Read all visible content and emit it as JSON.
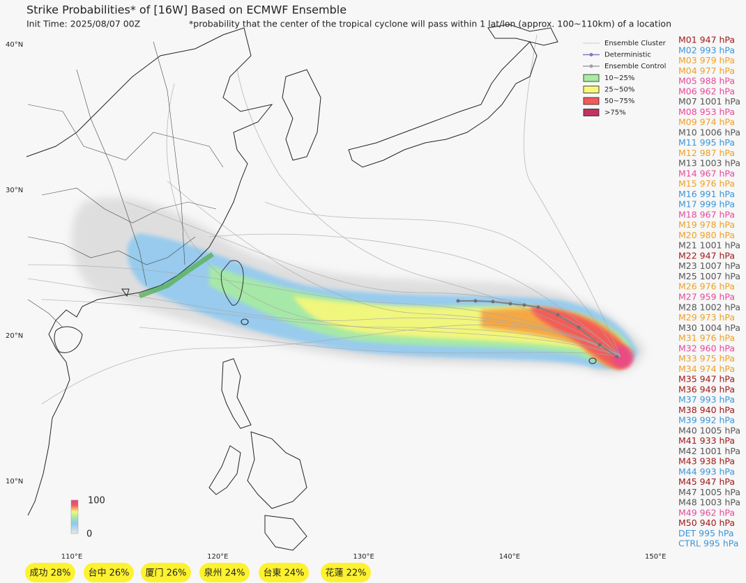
{
  "header": {
    "title": "Strike Probabilities* of [16W] Based on ECMWF Ensemble",
    "init_time": "Init Time: 2025/08/07 00Z",
    "footnote": "*probability that the center of the tropical cyclone will pass within 1 lat/lon (approx. 100~110km) of a location"
  },
  "map": {
    "lat_ticks": [
      {
        "value": 40,
        "label": "40°N"
      },
      {
        "value": 30,
        "label": "30°N"
      },
      {
        "value": 20,
        "label": "20°N"
      },
      {
        "value": 10,
        "label": "10°N"
      }
    ],
    "lon_ticks": [
      {
        "value": 110,
        "label": "110°E"
      },
      {
        "value": 120,
        "label": "120°E"
      },
      {
        "value": 130,
        "label": "130°E"
      },
      {
        "value": 140,
        "label": "140°E"
      },
      {
        "value": 150,
        "label": "150°E"
      }
    ]
  },
  "legend": {
    "lines": [
      {
        "label": "Ensemble Cluster",
        "color": "#c8c8c8"
      },
      {
        "label": "Deterministic",
        "color": "#7b7bc0"
      },
      {
        "label": "Ensemble Control",
        "color": "#a0a0a0"
      }
    ],
    "bands": [
      {
        "label": "10~25%",
        "color": "#a8eca0"
      },
      {
        "label": "25~50%",
        "color": "#f6f77a"
      },
      {
        "label": "50~75%",
        "color": "#f25a5a"
      },
      {
        "label": ">75%",
        "color": "#c2335e"
      }
    ]
  },
  "colorbar": {
    "max": "100",
    "min": "0"
  },
  "members": [
    {
      "label": "M01 947 hPa",
      "color": "#a01818"
    },
    {
      "label": "M02 993 hPa",
      "color": "#3a95d8"
    },
    {
      "label": "M03 979 hPa",
      "color": "#f0a020"
    },
    {
      "label": "M04 977 hPa",
      "color": "#f0a020"
    },
    {
      "label": "M05 988 hPa",
      "color": "#e8489a"
    },
    {
      "label": "M06 962 hPa",
      "color": "#e8489a"
    },
    {
      "label": "M07 1001 hPa",
      "color": "#555555"
    },
    {
      "label": "M08 953 hPa",
      "color": "#e8489a"
    },
    {
      "label": "M09 974 hPa",
      "color": "#f0a020"
    },
    {
      "label": "M10 1006 hPa",
      "color": "#555555"
    },
    {
      "label": "M11 995 hPa",
      "color": "#3a95d8"
    },
    {
      "label": "M12 987 hPa",
      "color": "#f0a020"
    },
    {
      "label": "M13 1003 hPa",
      "color": "#555555"
    },
    {
      "label": "M14 967 hPa",
      "color": "#e8489a"
    },
    {
      "label": "M15 976 hPa",
      "color": "#f0a020"
    },
    {
      "label": "M16 991 hPa",
      "color": "#3a95d8"
    },
    {
      "label": "M17 999 hPa",
      "color": "#3a95d8"
    },
    {
      "label": "M18 967 hPa",
      "color": "#e8489a"
    },
    {
      "label": "M19 978 hPa",
      "color": "#f0a020"
    },
    {
      "label": "M20 980 hPa",
      "color": "#f0a020"
    },
    {
      "label": "M21 1001 hPa",
      "color": "#555555"
    },
    {
      "label": "M22 947 hPa",
      "color": "#a01818"
    },
    {
      "label": "M23 1007 hPa",
      "color": "#555555"
    },
    {
      "label": "M25 1007 hPa",
      "color": "#555555"
    },
    {
      "label": "M26 976 hPa",
      "color": "#f0a020"
    },
    {
      "label": "M27 959 hPa",
      "color": "#e8489a"
    },
    {
      "label": "M28 1002 hPa",
      "color": "#555555"
    },
    {
      "label": "M29 973 hPa",
      "color": "#f0a020"
    },
    {
      "label": "M30 1004 hPa",
      "color": "#555555"
    },
    {
      "label": "M31 976 hPa",
      "color": "#f0a020"
    },
    {
      "label": "M32 960 hPa",
      "color": "#e8489a"
    },
    {
      "label": "M33 975 hPa",
      "color": "#f0a020"
    },
    {
      "label": "M34 974 hPa",
      "color": "#f0a020"
    },
    {
      "label": "M35 947 hPa",
      "color": "#a01818"
    },
    {
      "label": "M36 949 hPa",
      "color": "#a01818"
    },
    {
      "label": "M37 993 hPa",
      "color": "#3a95d8"
    },
    {
      "label": "M38 940 hPa",
      "color": "#a01818"
    },
    {
      "label": "M39 992 hPa",
      "color": "#3a95d8"
    },
    {
      "label": "M40 1005 hPa",
      "color": "#555555"
    },
    {
      "label": "M41 933 hPa",
      "color": "#a01818"
    },
    {
      "label": "M42 1001 hPa",
      "color": "#555555"
    },
    {
      "label": "M43 938 hPa",
      "color": "#a01818"
    },
    {
      "label": "M44 993 hPa",
      "color": "#3a95d8"
    },
    {
      "label": "M45 947 hPa",
      "color": "#a01818"
    },
    {
      "label": "M47 1005 hPa",
      "color": "#555555"
    },
    {
      "label": "M48 1003 hPa",
      "color": "#555555"
    },
    {
      "label": "M49 962 hPa",
      "color": "#e8489a"
    },
    {
      "label": "M50 940 hPa",
      "color": "#a01818"
    },
    {
      "label": "DET 995 hPa",
      "color": "#3a95d8"
    },
    {
      "label": "CTRL 995 hPa",
      "color": "#3a95d8"
    }
  ],
  "locations": [
    "成功 28%",
    "台中 26%",
    "厦门 26%",
    "泉州 24%",
    "台東 24%",
    "花蓮 22%"
  ]
}
